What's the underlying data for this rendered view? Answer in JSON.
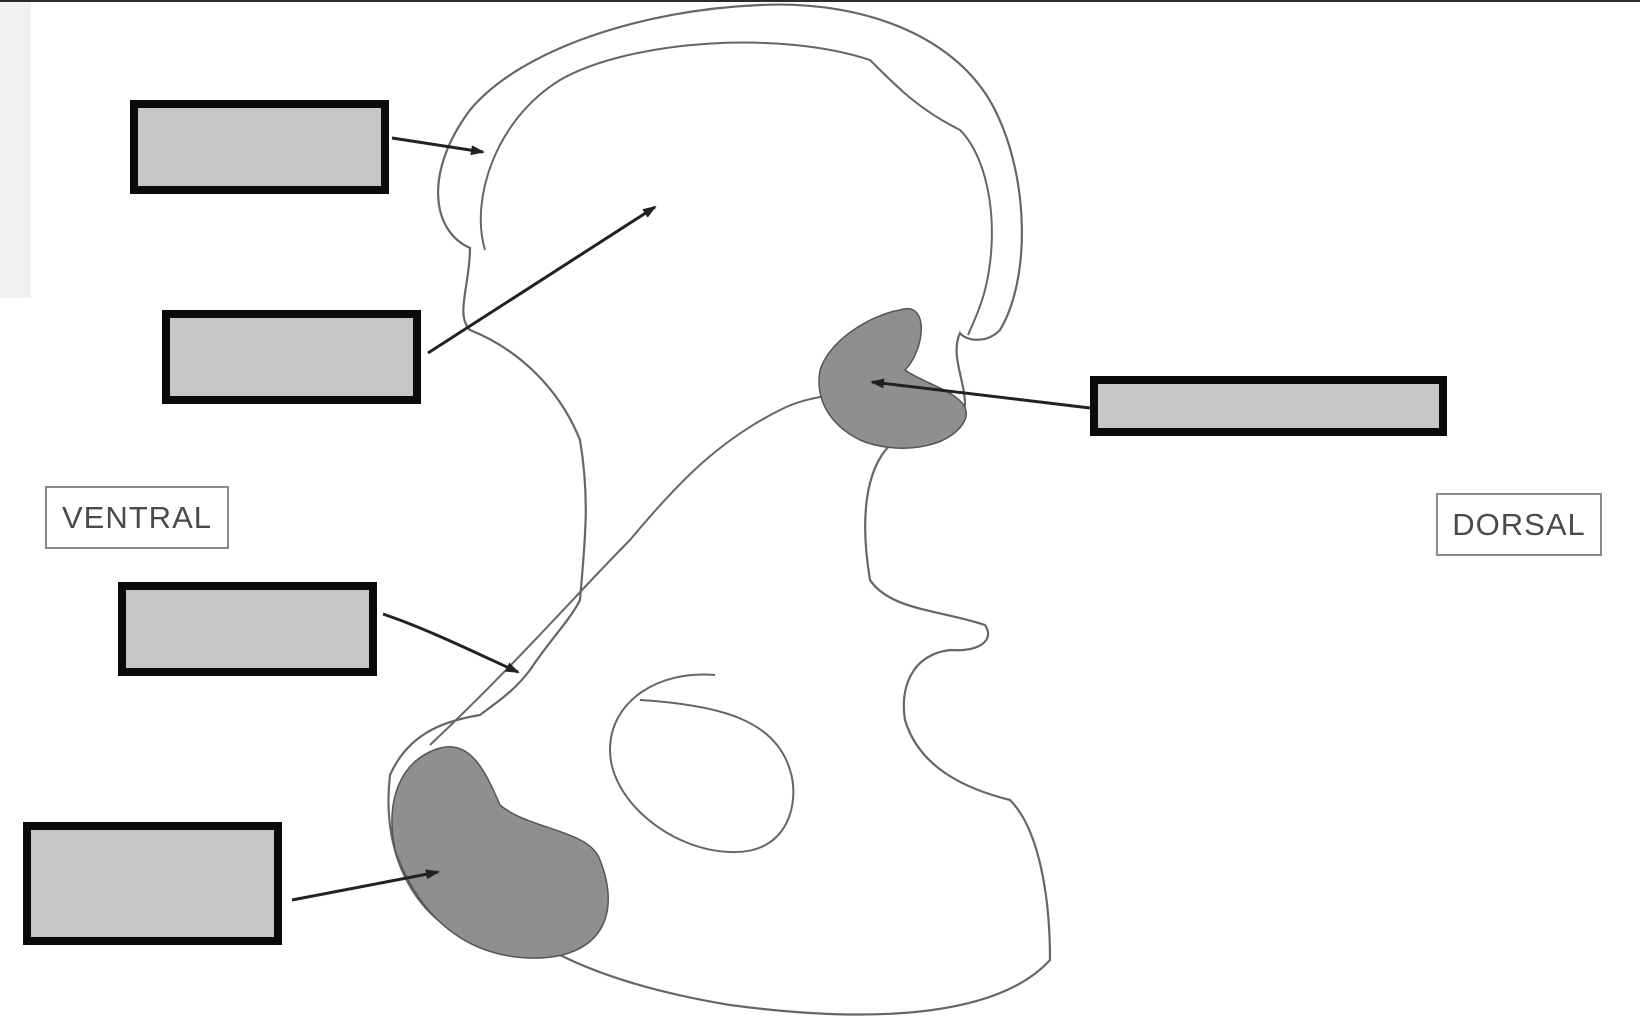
{
  "diagram": {
    "subject": "bone-outline",
    "orientation": {
      "left_label": "VENTRAL",
      "right_label": "DORSAL"
    },
    "label_boxes": [
      {
        "id": "label-box-1",
        "value": ""
      },
      {
        "id": "label-box-2",
        "value": ""
      },
      {
        "id": "label-box-3",
        "value": ""
      },
      {
        "id": "label-box-4",
        "value": ""
      },
      {
        "id": "label-box-5",
        "value": ""
      }
    ],
    "colors": {
      "box_fill": "#c6c6c6",
      "box_border": "#0a0a0a",
      "shaded_region": "#8f8f8f",
      "outline": "#555555"
    }
  }
}
